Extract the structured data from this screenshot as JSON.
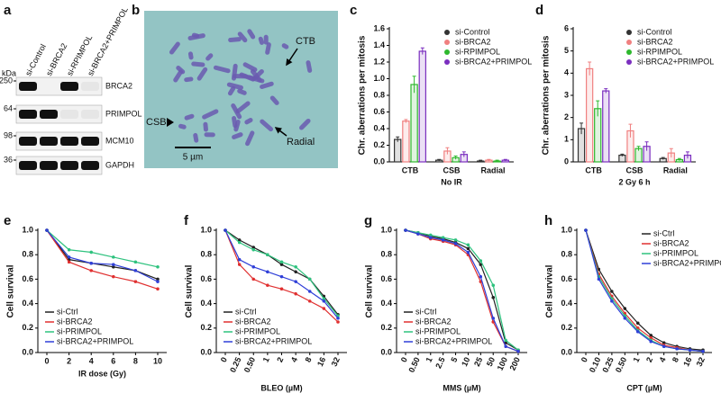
{
  "blot": {
    "panel_label": "a",
    "lanes": [
      "si-Control",
      "si-BRCA2",
      "si-RPIMPOL",
      "si-BRCA2+PRIMPOL"
    ],
    "kda_label": "kDa",
    "markers": [
      "250",
      "64",
      "98",
      "36"
    ],
    "proteins": [
      "BRCA2",
      "PRIMPOL",
      "MCM10",
      "GAPDH"
    ]
  },
  "micrograph": {
    "panel_label": "b",
    "arrows": [
      "CTB",
      "CSB",
      "Radial"
    ],
    "scale_bar": "5 µm"
  },
  "chart_data": [
    {
      "type": "bar",
      "panel_label": "c",
      "ylabel": "Chr. aberrations per mitosis",
      "xlabel": "No IR",
      "categories": [
        "CTB",
        "CSB",
        "Radial"
      ],
      "ylim": [
        0,
        1.6
      ],
      "yticks": [
        {
          "value": 0,
          "label": "0.0"
        },
        0.2,
        0.4,
        0.6,
        0.8,
        {
          "value": 1,
          "label": "1.0"
        },
        1.2,
        1.4,
        1.6
      ],
      "legend": "upper right",
      "series": [
        {
          "name": "si-Control",
          "color": "#333333",
          "values": [
            0.27,
            0.02,
            0.01
          ],
          "errors": [
            0.03,
            0.01,
            0.01
          ]
        },
        {
          "name": "si-BRCA2",
          "color": "#f08080",
          "values": [
            0.49,
            0.13,
            0.02
          ],
          "errors": [
            0.02,
            0.04,
            0.01
          ]
        },
        {
          "name": "si-RPIMPOL",
          "color": "#2eb82e",
          "values": [
            0.93,
            0.05,
            0.01
          ],
          "errors": [
            0.1,
            0.02,
            0.01
          ]
        },
        {
          "name": "si-BRCA2+PRIMPOL",
          "color": "#7b2fbf",
          "values": [
            1.33,
            0.09,
            0.02
          ],
          "errors": [
            0.04,
            0.03,
            0.01
          ]
        }
      ]
    },
    {
      "type": "bar",
      "panel_label": "d",
      "ylabel": "Chr. aberrations per mitosis",
      "xlabel": "2 Gy 6 h",
      "categories": [
        "CTB",
        "CSB",
        "Radial"
      ],
      "ylim": [
        0,
        6
      ],
      "yticks": [
        0,
        1,
        2,
        3,
        4,
        5,
        6
      ],
      "legend": "upper right",
      "series": [
        {
          "name": "si-Control",
          "color": "#333333",
          "values": [
            1.5,
            0.3,
            0.15
          ],
          "errors": [
            0.25,
            0.05,
            0.05
          ]
        },
        {
          "name": "si-BRCA2",
          "color": "#f08080",
          "values": [
            4.2,
            1.4,
            0.4
          ],
          "errors": [
            0.3,
            0.3,
            0.2
          ]
        },
        {
          "name": "si-RPIMPOL",
          "color": "#2eb82e",
          "values": [
            2.4,
            0.6,
            0.1
          ],
          "errors": [
            0.35,
            0.1,
            0.05
          ]
        },
        {
          "name": "si-BRCA2+PRIMPOL",
          "color": "#7b2fbf",
          "values": [
            3.2,
            0.7,
            0.3
          ],
          "errors": [
            0.1,
            0.2,
            0.15
          ]
        }
      ]
    },
    {
      "type": "line",
      "panel_label": "e",
      "ylabel": "Cell survival",
      "xlabel": "IR dose (Gy)",
      "categories": [
        "0",
        "2",
        "4",
        "6",
        "8",
        "10"
      ],
      "ylim": [
        0,
        1
      ],
      "yticks": [
        {
          "value": 0,
          "label": "0.0"
        },
        0.2,
        0.4,
        0.6,
        0.8,
        {
          "value": 1,
          "label": "1.0"
        }
      ],
      "legend": "lower left",
      "series": [
        {
          "name": "si-Ctrl",
          "color": "#222222",
          "values": [
            1,
            0.76,
            0.73,
            0.7,
            0.67,
            0.6
          ]
        },
        {
          "name": "si-BRCA2",
          "color": "#e03030",
          "values": [
            1,
            0.74,
            0.67,
            0.62,
            0.58,
            0.52
          ]
        },
        {
          "name": "si-PRIMPOL",
          "color": "#2ec27e",
          "values": [
            1,
            0.84,
            0.82,
            0.78,
            0.74,
            0.7
          ]
        },
        {
          "name": "si-BRCA2+PRIMPOL",
          "color": "#2f3fd8",
          "values": [
            1,
            0.78,
            0.73,
            0.72,
            0.67,
            0.58
          ]
        }
      ]
    },
    {
      "type": "line",
      "panel_label": "f",
      "ylabel": "Cell survival",
      "xlabel": "BLEO (µM)",
      "categories": [
        "0",
        "0.25",
        "0.50",
        "1",
        "2",
        "4",
        "8",
        "16",
        "32"
      ],
      "ylim": [
        0,
        1
      ],
      "yticks": [
        {
          "value": 0,
          "label": "0.0"
        },
        0.2,
        0.4,
        0.6,
        0.8,
        {
          "value": 1,
          "label": "1.0"
        }
      ],
      "legend": "lower left",
      "series": [
        {
          "name": "si-Ctrl",
          "color": "#222222",
          "values": [
            1,
            0.92,
            0.86,
            0.8,
            0.72,
            0.66,
            0.6,
            0.46,
            0.31
          ]
        },
        {
          "name": "si-BRCA2",
          "color": "#e03030",
          "values": [
            1,
            0.72,
            0.6,
            0.55,
            0.52,
            0.48,
            0.42,
            0.36,
            0.25
          ]
        },
        {
          "name": "si-PRIMPOL",
          "color": "#2ec27e",
          "values": [
            1,
            0.9,
            0.84,
            0.8,
            0.74,
            0.7,
            0.6,
            0.44,
            0.3
          ]
        },
        {
          "name": "si-BRCA2+PRIMPOL",
          "color": "#2f3fd8",
          "values": [
            1,
            0.76,
            0.7,
            0.66,
            0.62,
            0.58,
            0.5,
            0.42,
            0.28
          ]
        }
      ]
    },
    {
      "type": "line",
      "panel_label": "g",
      "ylabel": "Cell survival",
      "xlabel": "MMS (µM)",
      "categories": [
        "0",
        "0.50",
        "1",
        "2.5",
        "5",
        "10",
        "25",
        "50",
        "100",
        "200"
      ],
      "ylim": [
        0,
        1
      ],
      "yticks": [
        {
          "value": 0,
          "label": "0.0"
        },
        0.2,
        0.4,
        0.6,
        0.8,
        {
          "value": 1,
          "label": "1.0"
        }
      ],
      "legend": "lower left",
      "series": [
        {
          "name": "si-Ctrl",
          "color": "#222222",
          "values": [
            1,
            0.98,
            0.95,
            0.93,
            0.9,
            0.85,
            0.72,
            0.45,
            0.08,
            0.02
          ]
        },
        {
          "name": "si-BRCA2",
          "color": "#e03030",
          "values": [
            1,
            0.97,
            0.93,
            0.91,
            0.88,
            0.8,
            0.58,
            0.25,
            0.05,
            0.01
          ]
        },
        {
          "name": "si-PRIMPOL",
          "color": "#2ec27e",
          "values": [
            1,
            0.98,
            0.96,
            0.94,
            0.92,
            0.88,
            0.75,
            0.55,
            0.1,
            0.02
          ]
        },
        {
          "name": "si-BRCA2+PRIMPOL",
          "color": "#2f3fd8",
          "values": [
            1,
            0.97,
            0.94,
            0.92,
            0.89,
            0.82,
            0.62,
            0.28,
            0.05,
            0.01
          ]
        }
      ]
    },
    {
      "type": "line",
      "panel_label": "h",
      "ylabel": "Cell survival",
      "xlabel": "CPT (µM)",
      "categories": [
        "0",
        "0.10",
        "0.25",
        "0.50",
        "1",
        "2",
        "4",
        "8",
        "16",
        "32"
      ],
      "ylim": [
        0,
        1
      ],
      "yticks": [
        {
          "value": 0,
          "label": "0.0"
        },
        0.2,
        0.4,
        0.6,
        0.8,
        {
          "value": 1,
          "label": "1.0"
        }
      ],
      "legend": "upper right",
      "series": [
        {
          "name": "si-Ctrl",
          "color": "#222222",
          "values": [
            1,
            0.68,
            0.5,
            0.36,
            0.24,
            0.14,
            0.08,
            0.05,
            0.03,
            0.02
          ]
        },
        {
          "name": "si-BRCA2",
          "color": "#e03030",
          "values": [
            1,
            0.64,
            0.46,
            0.32,
            0.2,
            0.12,
            0.06,
            0.04,
            0.02,
            0.01
          ]
        },
        {
          "name": "si-PRIMPOL",
          "color": "#2ec27e",
          "values": [
            1,
            0.62,
            0.44,
            0.3,
            0.18,
            0.1,
            0.05,
            0.03,
            0.02,
            0.01
          ]
        },
        {
          "name": "si-BRCA2+PRIMPOL",
          "color": "#2f3fd8",
          "values": [
            1,
            0.6,
            0.42,
            0.28,
            0.17,
            0.09,
            0.05,
            0.03,
            0.02,
            0.01
          ]
        }
      ]
    }
  ]
}
